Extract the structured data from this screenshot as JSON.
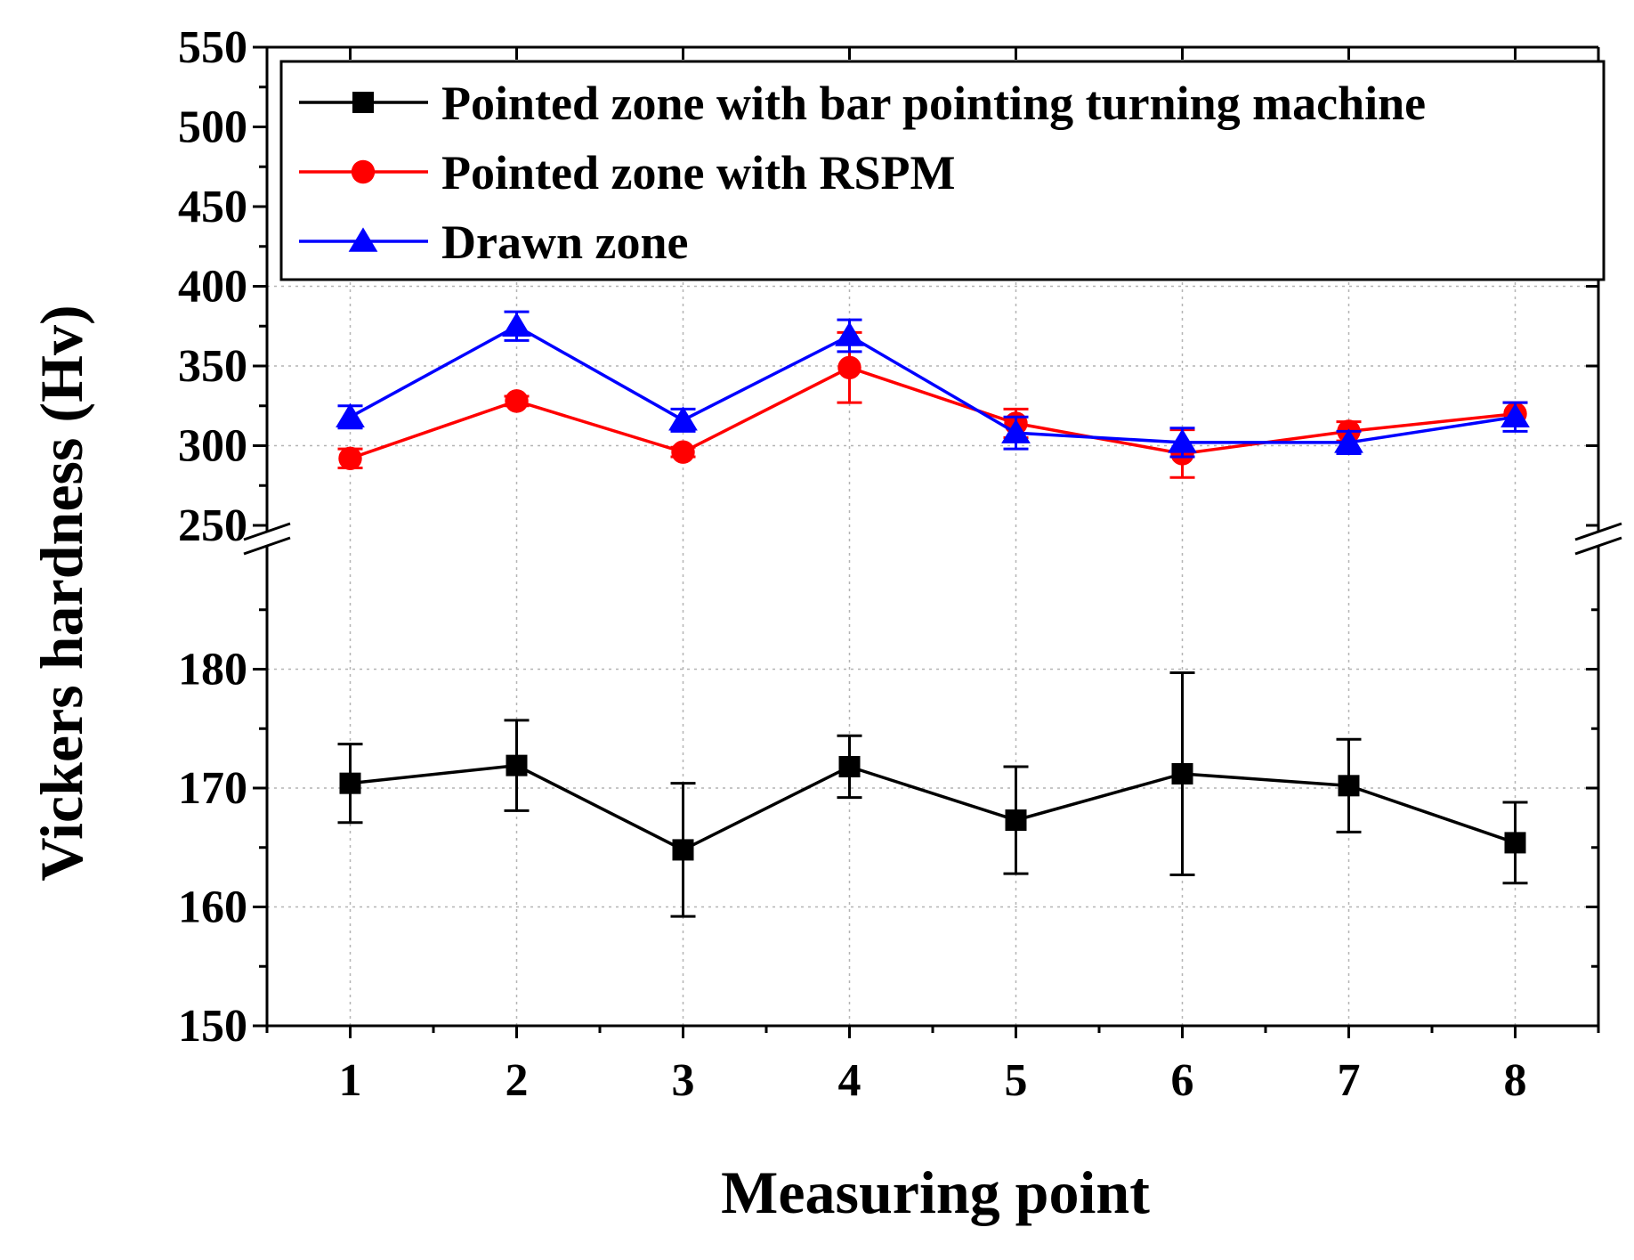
{
  "chart_data": {
    "type": "line",
    "xlabel": "Measuring point",
    "ylabel": "Vickers hardness (Hv)",
    "x": [
      1,
      2,
      3,
      4,
      5,
      6,
      7,
      8
    ],
    "xlim": [
      0.5,
      8.5
    ],
    "x_ticks": [
      "1",
      "2",
      "3",
      "4",
      "5",
      "6",
      "7",
      "8"
    ],
    "y_axis_break": true,
    "y_upper_segment": {
      "range": [
        250,
        550
      ],
      "ticks": [
        "250",
        "300",
        "350",
        "400",
        "450",
        "500",
        "550"
      ],
      "gridlines": [
        300,
        350,
        400
      ]
    },
    "y_lower_segment": {
      "range": [
        150,
        190
      ],
      "ticks": [
        "150",
        "160",
        "170",
        "180"
      ],
      "gridlines": [
        160,
        170,
        180
      ]
    },
    "grid": true,
    "legend_position": "top-right",
    "series": [
      {
        "name": "Pointed zone with bar pointing turning machine",
        "color": "#000000",
        "marker": "square",
        "segment": "lower",
        "values": [
          170.4,
          171.9,
          164.8,
          171.8,
          167.3,
          171.2,
          170.2,
          165.4
        ],
        "errors": [
          3.3,
          3.8,
          5.6,
          2.6,
          4.5,
          8.5,
          3.9,
          3.4
        ]
      },
      {
        "name": "Pointed zone with RSPM",
        "color": "#ff0000",
        "marker": "circle",
        "segment": "upper",
        "values": [
          292,
          328,
          296,
          349,
          314,
          295,
          309,
          320
        ],
        "errors": [
          6,
          3,
          3,
          22,
          9,
          15,
          6,
          7
        ]
      },
      {
        "name": "Drawn zone",
        "color": "#0000ff",
        "marker": "triangle",
        "segment": "upper",
        "values": [
          318,
          375,
          316,
          369,
          308,
          302,
          302,
          318
        ],
        "errors": [
          7,
          9,
          7,
          10,
          10,
          9,
          7,
          9
        ]
      }
    ]
  }
}
